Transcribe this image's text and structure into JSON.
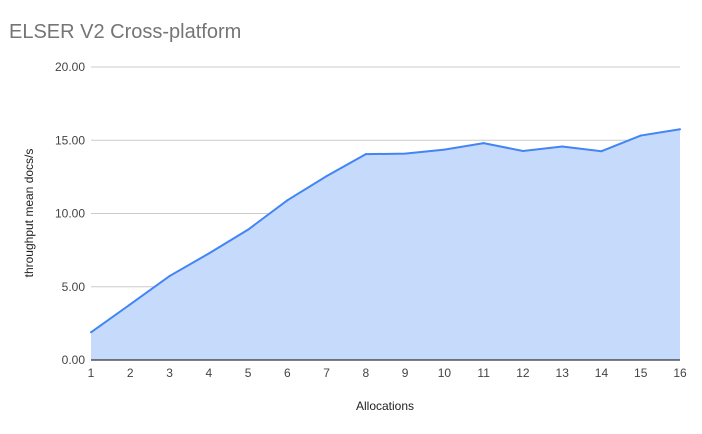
{
  "chart_data": {
    "type": "area",
    "title": "ELSER V2 Cross-platform",
    "xlabel": "Allocations",
    "ylabel": "throughput mean docs/s",
    "x": [
      1,
      2,
      3,
      4,
      5,
      6,
      7,
      8,
      9,
      10,
      11,
      12,
      13,
      14,
      15,
      16
    ],
    "series": [
      {
        "values": [
          1.89,
          3.8,
          5.73,
          7.27,
          8.9,
          10.9,
          12.55,
          14.05,
          14.09,
          14.36,
          14.8,
          14.27,
          14.57,
          14.25,
          15.32,
          15.75
        ]
      }
    ],
    "ylim": [
      0,
      20
    ],
    "yticks": [
      "0.00",
      "5.00",
      "10.00",
      "15.00",
      "20.00"
    ],
    "xticks": [
      "1",
      "2",
      "3",
      "4",
      "5",
      "6",
      "7",
      "8",
      "9",
      "10",
      "11",
      "12",
      "13",
      "14",
      "15",
      "16"
    ],
    "grid": true,
    "legend": "none",
    "colors": {
      "line": "#4285f4",
      "fill": "#c6dafc",
      "grid": "#cccccc",
      "axis": "#333333"
    }
  }
}
